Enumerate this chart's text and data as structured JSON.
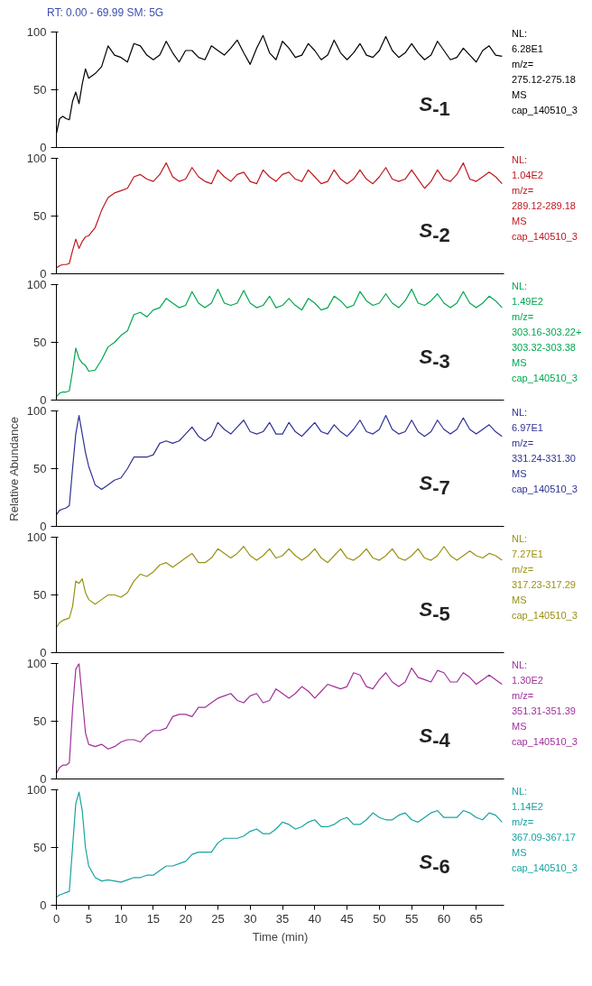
{
  "chart_data": [
    {
      "type": "line",
      "title": "S-1",
      "subtitle": "RT: 0.00 - 69.99 SM: 5G",
      "annotations": [
        "NL:",
        "6.28E1",
        "m/z=",
        "275.12-275.18",
        "MS",
        "cap_140510_3"
      ],
      "xlim": [
        0,
        69.3
      ],
      "ylim": [
        0,
        100
      ],
      "yticks": [
        0,
        50,
        100
      ],
      "tick_labels": "y",
      "grid": false,
      "x": [
        0,
        0.5,
        1,
        1.5,
        2,
        2.5,
        3,
        3.5,
        4,
        4.5,
        5,
        6,
        7,
        8,
        9,
        10,
        11,
        12,
        13,
        14,
        15,
        16,
        17,
        18,
        19,
        20,
        21,
        22,
        23,
        24,
        25,
        26,
        27,
        28,
        29,
        30,
        31,
        32,
        33,
        34,
        35,
        36,
        37,
        38,
        39,
        40,
        41,
        42,
        43,
        44,
        45,
        46,
        47,
        48,
        49,
        50,
        51,
        52,
        53,
        54,
        55,
        56,
        57,
        58,
        59,
        60,
        61,
        62,
        63,
        64,
        65,
        66,
        67,
        68,
        69
      ],
      "series": [
        {
          "color": "#000000",
          "values": [
            12,
            25,
            27,
            25,
            24,
            40,
            48,
            38,
            55,
            68,
            60,
            64,
            70,
            88,
            80,
            78,
            74,
            90,
            88,
            80,
            76,
            80,
            92,
            82,
            74,
            84,
            84,
            78,
            76,
            88,
            84,
            80,
            86,
            93,
            82,
            72,
            86,
            97,
            82,
            76,
            92,
            86,
            78,
            80,
            90,
            84,
            76,
            80,
            93,
            82,
            76,
            82,
            90,
            80,
            78,
            84,
            96,
            84,
            78,
            82,
            90,
            82,
            76,
            80,
            92,
            84,
            76,
            78,
            86,
            80,
            74,
            84,
            88,
            80,
            79
          ]
        }
      ]
    },
    {
      "type": "line",
      "title": "S-2",
      "annotations": [
        "NL:",
        "1.04E2",
        "m/z=",
        "289.12-289.18",
        "MS",
        "cap_140510_3"
      ],
      "xlim": [
        0,
        69.3
      ],
      "ylim": [
        0,
        100
      ],
      "yticks": [
        0,
        50,
        100
      ],
      "tick_labels": "y",
      "grid": false,
      "x": [
        0,
        0.5,
        1,
        1.5,
        2,
        2.5,
        3,
        3.5,
        4,
        4.5,
        5,
        6,
        7,
        8,
        9,
        10,
        11,
        12,
        13,
        14,
        15,
        16,
        17,
        18,
        19,
        20,
        21,
        22,
        23,
        24,
        25,
        26,
        27,
        28,
        29,
        30,
        31,
        32,
        33,
        34,
        35,
        36,
        37,
        38,
        39,
        40,
        41,
        42,
        43,
        44,
        45,
        46,
        47,
        48,
        49,
        50,
        51,
        52,
        53,
        54,
        55,
        56,
        57,
        58,
        59,
        60,
        61,
        62,
        63,
        64,
        65,
        66,
        67,
        68,
        69
      ],
      "series": [
        {
          "color": "#c0171f",
          "values": [
            5,
            7,
            8,
            8,
            9,
            20,
            30,
            22,
            28,
            32,
            33,
            40,
            55,
            66,
            70,
            72,
            74,
            84,
            86,
            82,
            80,
            86,
            96,
            84,
            80,
            82,
            92,
            84,
            80,
            78,
            90,
            84,
            80,
            86,
            88,
            80,
            78,
            90,
            84,
            80,
            86,
            88,
            82,
            80,
            90,
            84,
            78,
            80,
            90,
            82,
            78,
            82,
            90,
            82,
            78,
            84,
            92,
            82,
            80,
            82,
            90,
            82,
            74,
            80,
            90,
            82,
            80,
            86,
            96,
            82,
            80,
            84,
            88,
            84,
            78
          ]
        }
      ]
    },
    {
      "type": "line",
      "title": "S-3",
      "annotations": [
        "NL:",
        "1.49E2",
        "m/z=",
        "303.16-303.22+",
        "303.32-303.38",
        "MS",
        "cap_140510_3"
      ],
      "xlim": [
        0,
        69.3
      ],
      "ylim": [
        0,
        100
      ],
      "yticks": [
        0,
        50,
        100
      ],
      "tick_labels": "y",
      "grid": false,
      "x": [
        0,
        0.5,
        1,
        1.5,
        2,
        2.5,
        3,
        3.5,
        4,
        4.5,
        5,
        6,
        7,
        8,
        9,
        10,
        11,
        12,
        13,
        14,
        15,
        16,
        17,
        18,
        19,
        20,
        21,
        22,
        23,
        24,
        25,
        26,
        27,
        28,
        29,
        30,
        31,
        32,
        33,
        34,
        35,
        36,
        37,
        38,
        39,
        40,
        41,
        42,
        43,
        44,
        45,
        46,
        47,
        48,
        49,
        50,
        51,
        52,
        53,
        54,
        55,
        56,
        57,
        58,
        59,
        60,
        61,
        62,
        63,
        64,
        65,
        66,
        67,
        68,
        69
      ],
      "series": [
        {
          "color": "#00a651",
          "values": [
            3,
            6,
            7,
            7,
            8,
            25,
            45,
            36,
            32,
            30,
            25,
            26,
            35,
            46,
            50,
            56,
            60,
            74,
            76,
            72,
            78,
            80,
            88,
            84,
            80,
            82,
            94,
            84,
            80,
            84,
            96,
            84,
            82,
            84,
            95,
            84,
            80,
            82,
            90,
            80,
            82,
            88,
            82,
            78,
            88,
            84,
            78,
            80,
            90,
            86,
            80,
            82,
            94,
            86,
            82,
            84,
            92,
            84,
            80,
            86,
            96,
            84,
            82,
            86,
            92,
            84,
            80,
            84,
            94,
            84,
            80,
            84,
            90,
            86,
            80
          ]
        }
      ]
    },
    {
      "type": "line",
      "title": "S-7",
      "ylabel": "Relative Abundance",
      "annotations": [
        "NL:",
        "6.97E1",
        "m/z=",
        "331.24-331.30",
        "MS",
        "cap_140510_3"
      ],
      "xlim": [
        0,
        69.3
      ],
      "ylim": [
        0,
        100
      ],
      "yticks": [
        0,
        50,
        100
      ],
      "tick_labels": "y",
      "grid": false,
      "x": [
        0,
        0.5,
        1,
        1.5,
        2,
        2.5,
        3,
        3.5,
        4,
        4.5,
        5,
        6,
        7,
        8,
        9,
        10,
        11,
        12,
        13,
        14,
        15,
        16,
        17,
        18,
        19,
        20,
        21,
        22,
        23,
        24,
        25,
        26,
        27,
        28,
        29,
        30,
        31,
        32,
        33,
        34,
        35,
        36,
        37,
        38,
        39,
        40,
        41,
        42,
        43,
        44,
        45,
        46,
        47,
        48,
        49,
        50,
        51,
        52,
        53,
        54,
        55,
        56,
        57,
        58,
        59,
        60,
        61,
        62,
        63,
        64,
        65,
        66,
        67,
        68,
        69
      ],
      "series": [
        {
          "color": "#2e3192",
          "values": [
            10,
            14,
            15,
            16,
            18,
            50,
            80,
            96,
            80,
            64,
            52,
            36,
            32,
            36,
            40,
            42,
            50,
            60,
            60,
            60,
            62,
            72,
            74,
            72,
            74,
            80,
            86,
            78,
            74,
            78,
            90,
            84,
            80,
            86,
            92,
            82,
            80,
            82,
            90,
            80,
            80,
            90,
            82,
            78,
            84,
            90,
            82,
            80,
            88,
            82,
            78,
            84,
            92,
            82,
            80,
            84,
            96,
            84,
            80,
            82,
            92,
            82,
            78,
            82,
            92,
            84,
            80,
            84,
            94,
            84,
            80,
            84,
            88,
            82,
            78
          ]
        }
      ]
    },
    {
      "type": "line",
      "title": "S-5",
      "annotations": [
        "NL:",
        "7.27E1",
        "m/z=",
        "317.23-317.29",
        "MS",
        "cap_140510_3"
      ],
      "xlim": [
        0,
        69.3
      ],
      "ylim": [
        0,
        100
      ],
      "yticks": [
        0,
        50,
        100
      ],
      "tick_labels": "y",
      "grid": false,
      "x": [
        0,
        0.5,
        1,
        1.5,
        2,
        2.5,
        3,
        3.5,
        4,
        4.5,
        5,
        6,
        7,
        8,
        9,
        10,
        11,
        12,
        13,
        14,
        15,
        16,
        17,
        18,
        19,
        20,
        21,
        22,
        23,
        24,
        25,
        26,
        27,
        28,
        29,
        30,
        31,
        32,
        33,
        34,
        35,
        36,
        37,
        38,
        39,
        40,
        41,
        42,
        43,
        44,
        45,
        46,
        47,
        48,
        49,
        50,
        51,
        52,
        53,
        54,
        55,
        56,
        57,
        58,
        59,
        60,
        61,
        62,
        63,
        64,
        65,
        66,
        67,
        68,
        69
      ],
      "series": [
        {
          "color": "#999113",
          "values": [
            22,
            26,
            28,
            29,
            30,
            40,
            62,
            60,
            64,
            52,
            46,
            42,
            46,
            50,
            50,
            48,
            52,
            62,
            68,
            66,
            70,
            76,
            78,
            74,
            78,
            82,
            86,
            78,
            78,
            82,
            90,
            86,
            82,
            86,
            92,
            84,
            80,
            84,
            90,
            82,
            84,
            90,
            84,
            80,
            84,
            90,
            82,
            78,
            84,
            90,
            82,
            80,
            84,
            90,
            82,
            80,
            84,
            90,
            82,
            80,
            84,
            90,
            82,
            80,
            84,
            92,
            84,
            80,
            84,
            88,
            84,
            82,
            86,
            84,
            80
          ]
        }
      ]
    },
    {
      "type": "line",
      "title": "S-4",
      "annotations": [
        "NL:",
        "1.30E2",
        "m/z=",
        "351.31-351.39",
        "MS",
        "cap_140510_3"
      ],
      "xlim": [
        0,
        69.3
      ],
      "ylim": [
        0,
        100
      ],
      "yticks": [
        0,
        50,
        100
      ],
      "tick_labels": "y",
      "grid": false,
      "x": [
        0,
        0.5,
        1,
        1.5,
        2,
        2.5,
        3,
        3.5,
        4,
        4.5,
        5,
        6,
        7,
        8,
        9,
        10,
        11,
        12,
        13,
        14,
        15,
        16,
        17,
        18,
        19,
        20,
        21,
        22,
        23,
        24,
        25,
        26,
        27,
        28,
        29,
        30,
        31,
        32,
        33,
        34,
        35,
        36,
        37,
        38,
        39,
        40,
        41,
        42,
        43,
        44,
        45,
        46,
        47,
        48,
        49,
        50,
        51,
        52,
        53,
        54,
        55,
        56,
        57,
        58,
        59,
        60,
        61,
        62,
        63,
        64,
        65,
        66,
        67,
        68,
        69
      ],
      "series": [
        {
          "color": "#a0309a",
          "values": [
            5,
            10,
            12,
            12,
            14,
            60,
            95,
            100,
            70,
            40,
            30,
            28,
            30,
            26,
            28,
            32,
            34,
            34,
            32,
            38,
            42,
            42,
            44,
            54,
            56,
            56,
            54,
            62,
            62,
            66,
            70,
            72,
            74,
            68,
            66,
            72,
            74,
            66,
            68,
            78,
            74,
            70,
            74,
            80,
            76,
            70,
            76,
            82,
            80,
            78,
            80,
            92,
            90,
            80,
            78,
            86,
            92,
            84,
            80,
            84,
            96,
            88,
            86,
            84,
            94,
            92,
            84,
            84,
            92,
            88,
            82,
            86,
            90,
            86,
            82
          ]
        }
      ]
    },
    {
      "type": "line",
      "title": "S-6",
      "xlabel": "Time (min)",
      "annotations": [
        "NL:",
        "1.14E2",
        "m/z=",
        "367.09-367.17",
        "MS",
        "cap_140510_3"
      ],
      "xlim": [
        0,
        69.3
      ],
      "xticks": [
        0,
        5,
        10,
        15,
        20,
        25,
        30,
        35,
        40,
        45,
        50,
        55,
        60,
        65
      ],
      "ylim": [
        0,
        100
      ],
      "yticks": [
        0,
        50,
        100
      ],
      "grid": false,
      "x": [
        0,
        0.5,
        1,
        1.5,
        2,
        2.5,
        3,
        3.5,
        4,
        4.5,
        5,
        6,
        7,
        8,
        9,
        10,
        11,
        12,
        13,
        14,
        15,
        16,
        17,
        18,
        19,
        20,
        21,
        22,
        23,
        24,
        25,
        26,
        27,
        28,
        29,
        30,
        31,
        32,
        33,
        34,
        35,
        36,
        37,
        38,
        39,
        40,
        41,
        42,
        43,
        44,
        45,
        46,
        47,
        48,
        49,
        50,
        51,
        52,
        53,
        54,
        55,
        56,
        57,
        58,
        59,
        60,
        61,
        62,
        63,
        64,
        65,
        66,
        67,
        68,
        69
      ],
      "series": [
        {
          "color": "#17a3a0",
          "values": [
            7,
            9,
            10,
            11,
            12,
            50,
            88,
            98,
            82,
            50,
            34,
            24,
            21,
            22,
            21,
            20,
            22,
            24,
            24,
            26,
            26,
            30,
            34,
            34,
            36,
            38,
            44,
            46,
            46,
            46,
            54,
            58,
            58,
            58,
            60,
            64,
            66,
            62,
            62,
            66,
            72,
            70,
            66,
            68,
            72,
            74,
            68,
            68,
            70,
            74,
            76,
            70,
            70,
            74,
            80,
            76,
            74,
            74,
            78,
            80,
            74,
            72,
            76,
            80,
            82,
            76,
            76,
            76,
            82,
            80,
            76,
            74,
            80,
            78,
            72
          ]
        }
      ]
    }
  ]
}
